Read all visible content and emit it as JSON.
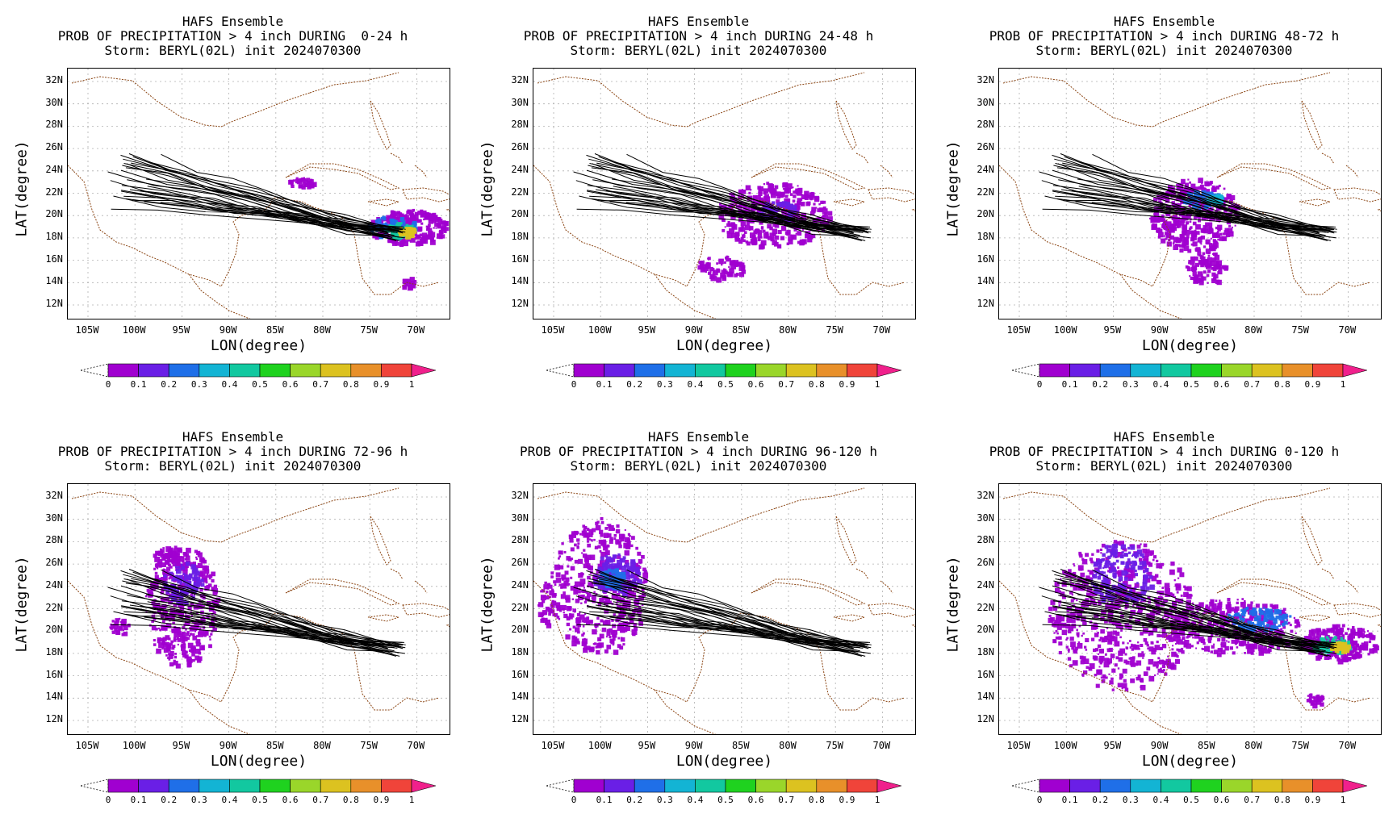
{
  "panels": [
    {
      "line1": "HAFS Ensemble",
      "line2": "PROB OF PRECIPITATION > 4 inch DURING  0-24 h",
      "line3": "Storm: BERYL(02L) init 2024070300",
      "period": "0-24"
    },
    {
      "line1": "HAFS Ensemble",
      "line2": "PROB OF PRECIPITATION > 4 inch DURING 24-48 h",
      "line3": "Storm: BERYL(02L) init 2024070300",
      "period": "24-48"
    },
    {
      "line1": "HAFS Ensemble",
      "line2": "PROB OF PRECIPITATION > 4 inch DURING 48-72 h",
      "line3": "Storm: BERYL(02L) init 2024070300",
      "period": "48-72"
    },
    {
      "line1": "HAFS Ensemble",
      "line2": "PROB OF PRECIPITATION > 4 inch DURING 72-96 h",
      "line3": "Storm: BERYL(02L) init 2024070300",
      "period": "72-96"
    },
    {
      "line1": "HAFS Ensemble",
      "line2": "PROB OF PRECIPITATION > 4 inch DURING 96-120 h",
      "line3": "Storm: BERYL(02L) init 2024070300",
      "period": "96-120"
    },
    {
      "line1": "HAFS Ensemble",
      "line2": "PROB OF PRECIPITATION > 4 inch DURING 0-120 h",
      "line3": "Storm: BERYL(02L) init 2024070300",
      "period": "0-120"
    }
  ],
  "axes": {
    "xlabel": "LON(degree)",
    "ylabel": "LAT(degree)",
    "lat_ticks": [
      "32N",
      "30N",
      "28N",
      "26N",
      "24N",
      "22N",
      "20N",
      "18N",
      "16N",
      "14N",
      "12N"
    ],
    "lon_ticks": [
      "105W",
      "100W",
      "95W",
      "90W",
      "85W",
      "80W",
      "75W",
      "70W"
    ]
  },
  "colorbar": {
    "ticks": [
      "0",
      "0.1",
      "0.2",
      "0.3",
      "0.4",
      "0.5",
      "0.6",
      "0.7",
      "0.8",
      "0.9",
      "1"
    ],
    "colors": [
      "#a000d0",
      "#6a1fe6",
      "#1f6fe8",
      "#13b4d4",
      "#12c8a0",
      "#1fd21f",
      "#9ad62a",
      "#dcc220",
      "#e8902a",
      "#f0443a"
    ],
    "over_color": "#f0208c"
  },
  "colors": {
    "coast": "#8b4513",
    "track": "#000000",
    "grid": "#b0b0b0"
  }
}
